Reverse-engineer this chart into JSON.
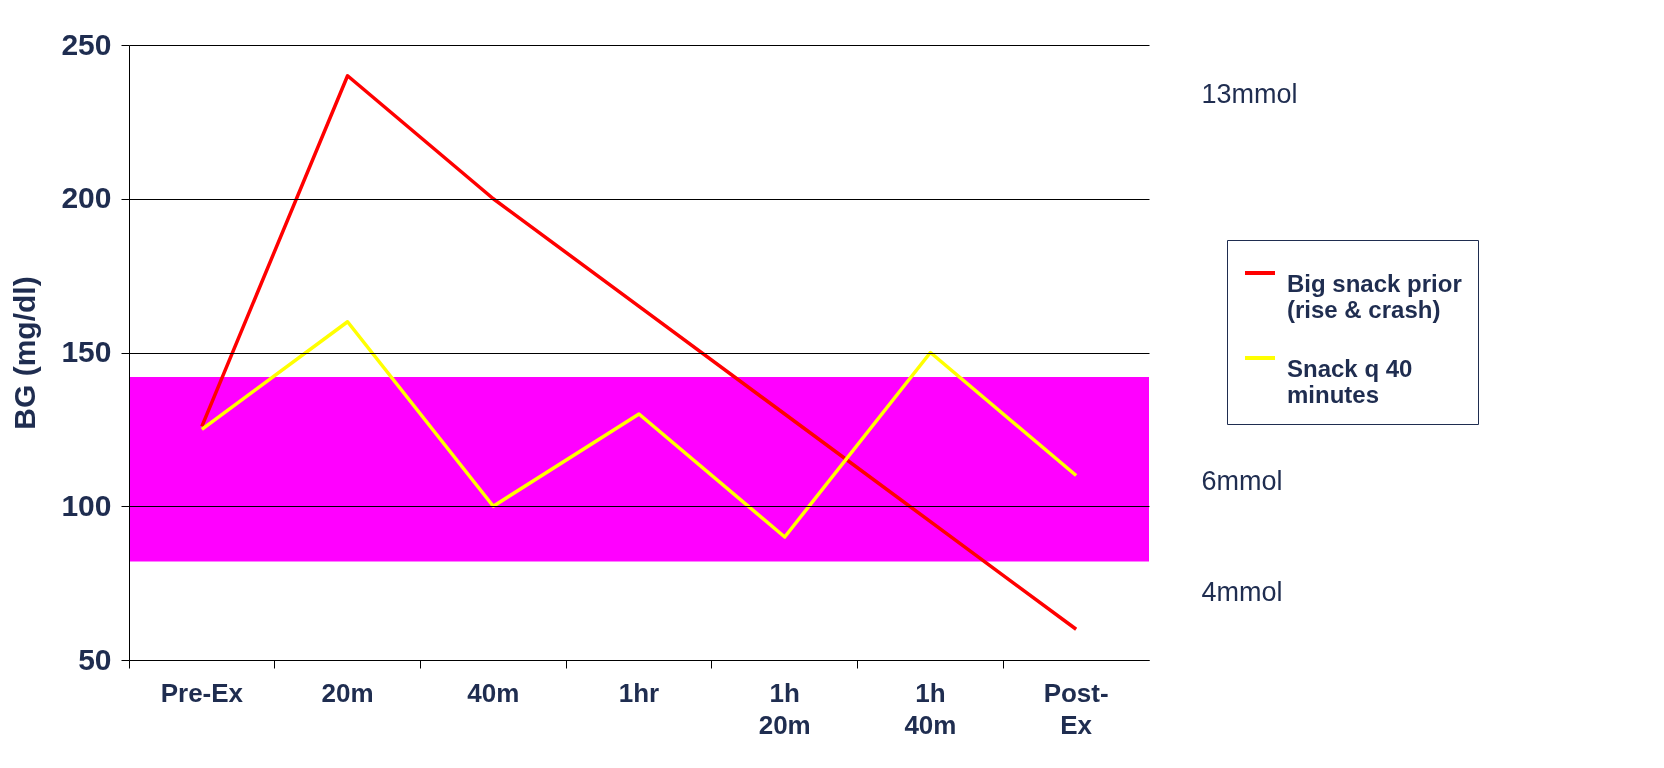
{
  "chart_data": {
    "type": "line",
    "ylabel": "BG (mg/dl)",
    "categories": [
      "Pre-Ex",
      "20m",
      "40m",
      "1hr",
      "1h 20m",
      "1h 40m",
      "Post-Ex"
    ],
    "series": [
      {
        "name": "Big snack prior (rise & crash)",
        "color": "#ff0000",
        "values": [
          126,
          240,
          200,
          165,
          130,
          95,
          60
        ]
      },
      {
        "name": "Snack q 40 minutes",
        "color": "#ffff00",
        "values": [
          125,
          160,
          100,
          130,
          90,
          150,
          110
        ]
      }
    ],
    "ylim": [
      50,
      250
    ],
    "yticks": [
      50,
      100,
      150,
      200,
      250
    ],
    "y2lim": [
      2.78,
      13.89
    ],
    "y2ticks": [
      {
        "value": 13,
        "label": "13mmol"
      },
      {
        "value": 6,
        "label": "6mmol"
      },
      {
        "value": 4,
        "label": "4mmol"
      }
    ],
    "bands": [
      {
        "axis": "y",
        "from": 82,
        "to": 142,
        "label": null,
        "color": "#ff00ff"
      }
    ],
    "grid": "y",
    "legend": "right",
    "marker": "none",
    "line_style": "solid"
  }
}
